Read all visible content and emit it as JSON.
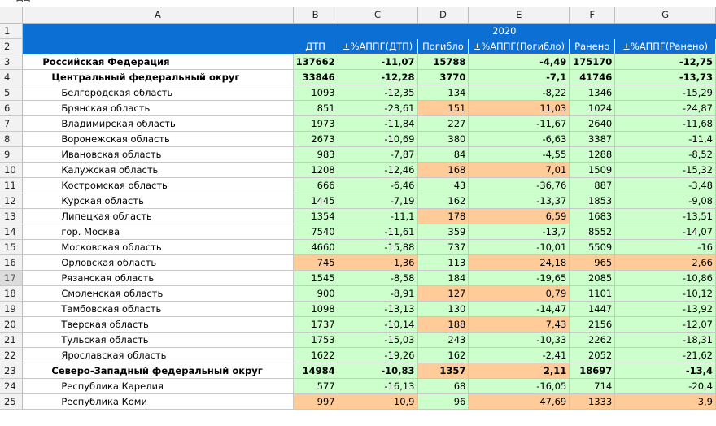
{
  "formula_bar": {
    "text": "ДД"
  },
  "columns": [
    "A",
    "B",
    "C",
    "D",
    "E",
    "F",
    "G"
  ],
  "header": {
    "year": "2020",
    "row2": [
      "ДТП",
      "±%АППГ(ДТП)",
      "Погибло",
      "±%АППГ(Погибло)",
      "Ранено",
      "±%АППГ(Ранено)"
    ]
  },
  "rows": [
    {
      "n": "3",
      "name": "Российская Федерация",
      "level": 0,
      "v": [
        "137662",
        "-11,07",
        "15788",
        "-4,49",
        "175170",
        "-12,75"
      ],
      "c": [
        "g",
        "g",
        "g",
        "g",
        "g",
        "g"
      ]
    },
    {
      "n": "4",
      "name": "Центральный федеральный округ",
      "level": 1,
      "v": [
        "33846",
        "-12,28",
        "3770",
        "-7,1",
        "41746",
        "-13,73"
      ],
      "c": [
        "g",
        "g",
        "g",
        "g",
        "g",
        "g"
      ]
    },
    {
      "n": "5",
      "name": "Белгородская область",
      "level": 2,
      "v": [
        "1093",
        "-12,35",
        "134",
        "-8,22",
        "1346",
        "-15,29"
      ],
      "c": [
        "g",
        "g",
        "g",
        "g",
        "g",
        "g"
      ]
    },
    {
      "n": "6",
      "name": "Брянская область",
      "level": 2,
      "v": [
        "851",
        "-23,61",
        "151",
        "11,03",
        "1024",
        "-24,87"
      ],
      "c": [
        "g",
        "g",
        "o",
        "o",
        "g",
        "g"
      ]
    },
    {
      "n": "7",
      "name": "Владимирская область",
      "level": 2,
      "v": [
        "1973",
        "-11,84",
        "227",
        "-11,67",
        "2640",
        "-11,68"
      ],
      "c": [
        "g",
        "g",
        "g",
        "g",
        "g",
        "g"
      ]
    },
    {
      "n": "8",
      "name": "Воронежская область",
      "level": 2,
      "v": [
        "2673",
        "-10,69",
        "380",
        "-6,63",
        "3387",
        "-11,4"
      ],
      "c": [
        "g",
        "g",
        "g",
        "g",
        "g",
        "g"
      ]
    },
    {
      "n": "9",
      "name": "Ивановская область",
      "level": 2,
      "v": [
        "983",
        "-7,87",
        "84",
        "-4,55",
        "1288",
        "-8,52"
      ],
      "c": [
        "g",
        "g",
        "g",
        "g",
        "g",
        "g"
      ]
    },
    {
      "n": "10",
      "name": "Калужская область",
      "level": 2,
      "v": [
        "1208",
        "-12,46",
        "168",
        "7,01",
        "1509",
        "-15,32"
      ],
      "c": [
        "g",
        "g",
        "o",
        "o",
        "g",
        "g"
      ]
    },
    {
      "n": "11",
      "name": "Костромская область",
      "level": 2,
      "v": [
        "666",
        "-6,46",
        "43",
        "-36,76",
        "887",
        "-3,48"
      ],
      "c": [
        "g",
        "g",
        "g",
        "g",
        "g",
        "g"
      ]
    },
    {
      "n": "12",
      "name": "Курская область",
      "level": 2,
      "v": [
        "1445",
        "-7,19",
        "162",
        "-13,37",
        "1853",
        "-9,08"
      ],
      "c": [
        "g",
        "g",
        "g",
        "g",
        "g",
        "g"
      ]
    },
    {
      "n": "13",
      "name": "Липецкая область",
      "level": 2,
      "v": [
        "1354",
        "-11,1",
        "178",
        "6,59",
        "1683",
        "-13,51"
      ],
      "c": [
        "g",
        "g",
        "o",
        "o",
        "g",
        "g"
      ]
    },
    {
      "n": "14",
      "name": "гор. Москва",
      "level": 2,
      "v": [
        "7540",
        "-11,61",
        "359",
        "-13,7",
        "8552",
        "-14,07"
      ],
      "c": [
        "g",
        "g",
        "g",
        "g",
        "g",
        "g"
      ]
    },
    {
      "n": "15",
      "name": "Московская область",
      "level": 2,
      "v": [
        "4660",
        "-15,88",
        "737",
        "-10,01",
        "5509",
        "-16"
      ],
      "c": [
        "g",
        "g",
        "g",
        "g",
        "g",
        "g"
      ]
    },
    {
      "n": "16",
      "name": "Орловская область",
      "level": 2,
      "v": [
        "745",
        "1,36",
        "113",
        "24,18",
        "965",
        "2,66"
      ],
      "c": [
        "o",
        "o",
        "g",
        "o",
        "o",
        "o"
      ]
    },
    {
      "n": "17",
      "name": "Рязанская область",
      "level": 2,
      "v": [
        "1545",
        "-8,58",
        "184",
        "-19,65",
        "2085",
        "-10,86"
      ],
      "c": [
        "g",
        "g",
        "g",
        "g",
        "g",
        "g"
      ],
      "selected": true
    },
    {
      "n": "18",
      "name": "Смоленская область",
      "level": 2,
      "v": [
        "900",
        "-8,91",
        "127",
        "0,79",
        "1101",
        "-10,12"
      ],
      "c": [
        "g",
        "g",
        "o",
        "o",
        "g",
        "g"
      ]
    },
    {
      "n": "19",
      "name": "Тамбовская область",
      "level": 2,
      "v": [
        "1098",
        "-13,13",
        "130",
        "-14,47",
        "1447",
        "-13,92"
      ],
      "c": [
        "g",
        "g",
        "g",
        "g",
        "g",
        "g"
      ]
    },
    {
      "n": "20",
      "name": "Тверская область",
      "level": 2,
      "v": [
        "1737",
        "-10,14",
        "188",
        "7,43",
        "2156",
        "-12,07"
      ],
      "c": [
        "g",
        "g",
        "o",
        "o",
        "g",
        "g"
      ]
    },
    {
      "n": "21",
      "name": "Тульская область",
      "level": 2,
      "v": [
        "1753",
        "-15,03",
        "243",
        "-10,33",
        "2262",
        "-18,31"
      ],
      "c": [
        "g",
        "g",
        "g",
        "g",
        "g",
        "g"
      ]
    },
    {
      "n": "22",
      "name": "Ярославская область",
      "level": 2,
      "v": [
        "1622",
        "-19,26",
        "162",
        "-2,41",
        "2052",
        "-21,62"
      ],
      "c": [
        "g",
        "g",
        "g",
        "g",
        "g",
        "g"
      ]
    },
    {
      "n": "23",
      "name": "Северо-Западный федеральный округ",
      "level": 1,
      "v": [
        "14984",
        "-10,83",
        "1357",
        "2,11",
        "18697",
        "-13,4"
      ],
      "c": [
        "g",
        "g",
        "o",
        "o",
        "g",
        "g"
      ]
    },
    {
      "n": "24",
      "name": "Республика Карелия",
      "level": 2,
      "v": [
        "577",
        "-16,13",
        "68",
        "-16,05",
        "714",
        "-20,4"
      ],
      "c": [
        "g",
        "g",
        "g",
        "g",
        "g",
        "g"
      ]
    },
    {
      "n": "25",
      "name": "Республика Коми",
      "level": 2,
      "v": [
        "997",
        "10,9",
        "96",
        "47,69",
        "1333",
        "3,9"
      ],
      "c": [
        "o",
        "o",
        "g",
        "o",
        "o",
        "o"
      ]
    }
  ],
  "colors": {
    "header_blue": "#0b6fd3",
    "increase": "#ffcc99",
    "decrease": "#ccffcc"
  }
}
